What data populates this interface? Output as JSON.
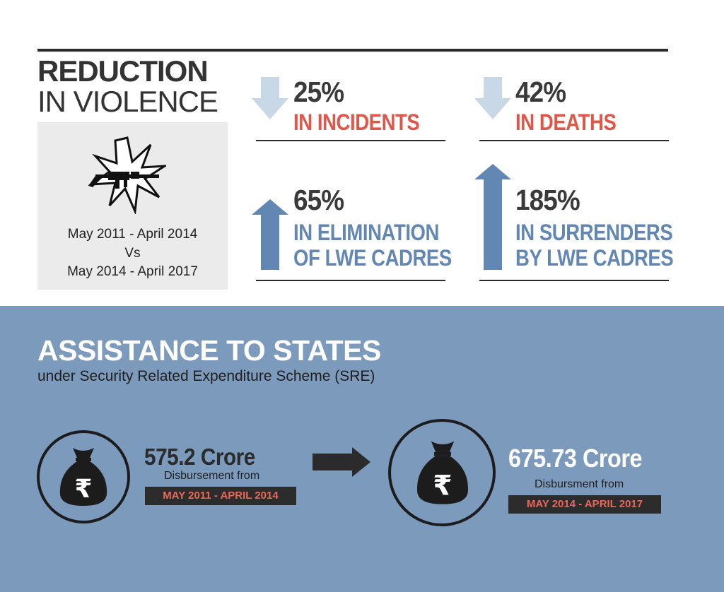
{
  "violence": {
    "title_line1": "REDUCTION",
    "title_line2": "IN VIOLENCE",
    "period_line1": "May 2011 - April 2014",
    "period_vs": "Vs",
    "period_line2": "May 2014 - April 2017",
    "icon": "gun-blast-icon",
    "stats": [
      {
        "percent": "25%",
        "label_lines": [
          "IN INCIDENTS"
        ],
        "direction": "down",
        "color": "#e0574a"
      },
      {
        "percent": "42%",
        "label_lines": [
          "IN DEATHS"
        ],
        "direction": "down",
        "color": "#e0574a"
      },
      {
        "percent": "65%",
        "label_lines": [
          "IN ELIMINATION",
          "OF LWE CADRES"
        ],
        "direction": "up",
        "color": "#6287b3"
      },
      {
        "percent": "185%",
        "label_lines": [
          "IN SURRENDERS",
          "BY LWE CADRES"
        ],
        "direction": "up",
        "color": "#6287b3"
      }
    ]
  },
  "assistance": {
    "title": "ASSISTANCE TO STATES",
    "subtitle": "under Security Related Expenditure Scheme (SRE)",
    "before": {
      "amount": "575.2 Crore",
      "caption": "Disbursement from",
      "period": "MAY 2011 - APRIL 2014",
      "icon": "money-bag-rupee-icon"
    },
    "after": {
      "amount": "675.73 Crore",
      "caption": "Disbursment from",
      "period": "MAY 2014 - APRIL 2017",
      "icon": "money-bag-rupee-icon"
    },
    "colors": {
      "band": "#7b9abc",
      "accent_red": "#e0574a",
      "dark": "#2c2c2c"
    }
  }
}
